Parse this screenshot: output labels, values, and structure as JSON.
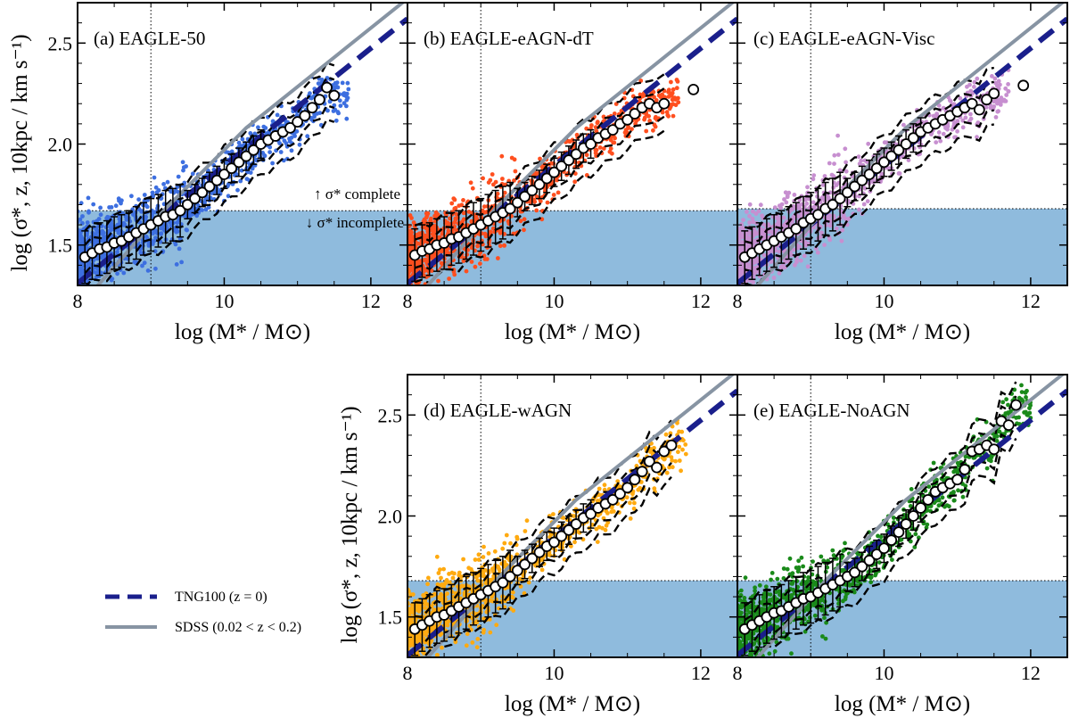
{
  "figure": {
    "legend": [
      {
        "label": "TNG100 (z = 0)",
        "color": "#1a1f8c",
        "style": "dashed"
      },
      {
        "label": "SDSS (0.02 < z < 0.2)",
        "color": "#8794a3",
        "style": "solid"
      }
    ],
    "annotation_up": "↑ σ* complete",
    "annotation_down": "↓ σ* incomplete",
    "colors": {
      "shade": "#8fbbdd",
      "tng": "#1a1f8c",
      "sdss": "#8794a3"
    }
  },
  "chart_data": [
    {
      "type": "scatter",
      "title": "(a) EAGLE-50",
      "xlabel": "log (M* / M⊙)",
      "ylabel": "log (σ*, z, 10kpc / km s⁻¹)",
      "xlim": [
        8,
        12.5
      ],
      "ylim": [
        1.3,
        2.7
      ],
      "xticks": [
        "8",
        "10",
        "12"
      ],
      "yticks": [
        "1.5",
        "2.0",
        "2.5"
      ],
      "point_color": "#3d6fe0",
      "completeness_limit": 1.67,
      "mass_limit": 9.0,
      "median_x": [
        8.1,
        8.2,
        8.3,
        8.4,
        8.5,
        8.6,
        8.7,
        8.8,
        8.9,
        9.0,
        9.1,
        9.2,
        9.3,
        9.4,
        9.5,
        9.6,
        9.7,
        9.8,
        9.9,
        10.0,
        10.1,
        10.2,
        10.3,
        10.4,
        10.5,
        10.6,
        10.7,
        10.8,
        10.9,
        11.0,
        11.1,
        11.2,
        11.3,
        11.4,
        11.5
      ],
      "median_y": [
        1.44,
        1.46,
        1.48,
        1.49,
        1.51,
        1.52,
        1.54,
        1.56,
        1.58,
        1.6,
        1.62,
        1.64,
        1.65,
        1.67,
        1.7,
        1.73,
        1.76,
        1.79,
        1.82,
        1.85,
        1.88,
        1.91,
        1.94,
        1.97,
        2.0,
        2.02,
        2.04,
        2.06,
        2.08,
        2.11,
        2.14,
        2.18,
        2.22,
        2.28,
        2.24
      ],
      "extra_points": []
    },
    {
      "type": "scatter",
      "title": "(b) EAGLE-eAGN-dT",
      "xlabel": "log (M* / M⊙)",
      "ylabel": "",
      "xlim": [
        8,
        12.5
      ],
      "ylim": [
        1.3,
        2.7
      ],
      "xticks": [
        "8",
        "10",
        "12"
      ],
      "yticks": [],
      "point_color": "#ff4f1f",
      "completeness_limit": 1.67,
      "mass_limit": 9.0,
      "median_x": [
        8.1,
        8.2,
        8.3,
        8.4,
        8.5,
        8.6,
        8.7,
        8.8,
        8.9,
        9.0,
        9.1,
        9.2,
        9.3,
        9.4,
        9.5,
        9.6,
        9.7,
        9.8,
        9.9,
        10.0,
        10.1,
        10.2,
        10.3,
        10.4,
        10.5,
        10.6,
        10.7,
        10.8,
        10.9,
        11.0,
        11.1,
        11.2,
        11.3,
        11.4,
        11.5
      ],
      "median_y": [
        1.45,
        1.47,
        1.48,
        1.5,
        1.51,
        1.53,
        1.54,
        1.56,
        1.58,
        1.6,
        1.62,
        1.64,
        1.66,
        1.68,
        1.71,
        1.74,
        1.77,
        1.8,
        1.83,
        1.86,
        1.89,
        1.92,
        1.95,
        1.98,
        2.0,
        2.03,
        2.05,
        2.07,
        2.1,
        2.12,
        2.15,
        2.18,
        2.2,
        2.18,
        2.2
      ],
      "extra_points": [
        [
          11.9,
          2.27
        ]
      ]
    },
    {
      "type": "scatter",
      "title": "(c) EAGLE-eAGN-Visc",
      "xlabel": "log (M* / M⊙)",
      "ylabel": "",
      "xlim": [
        8,
        12.5
      ],
      "ylim": [
        1.3,
        2.7
      ],
      "xticks": [
        "8",
        "10",
        "12"
      ],
      "yticks": [],
      "point_color": "#c78fd0",
      "completeness_limit": 1.68,
      "mass_limit": 9.0,
      "median_x": [
        8.1,
        8.2,
        8.3,
        8.4,
        8.5,
        8.6,
        8.7,
        8.8,
        8.9,
        9.0,
        9.1,
        9.2,
        9.3,
        9.4,
        9.5,
        9.6,
        9.7,
        9.8,
        9.9,
        10.0,
        10.1,
        10.2,
        10.3,
        10.4,
        10.5,
        10.6,
        10.7,
        10.8,
        10.9,
        11.0,
        11.1,
        11.2,
        11.3,
        11.4,
        11.5
      ],
      "median_y": [
        1.44,
        1.46,
        1.48,
        1.5,
        1.52,
        1.54,
        1.56,
        1.58,
        1.61,
        1.63,
        1.65,
        1.68,
        1.7,
        1.73,
        1.76,
        1.79,
        1.82,
        1.85,
        1.88,
        1.91,
        1.94,
        1.97,
        2.0,
        2.03,
        2.06,
        2.08,
        2.1,
        2.12,
        2.14,
        2.16,
        2.18,
        2.2,
        2.17,
        2.22,
        2.25
      ],
      "extra_points": [
        [
          11.9,
          2.29
        ]
      ]
    },
    {
      "type": "scatter",
      "title": "(d) EAGLE-wAGN",
      "xlabel": "log (M* / M⊙)",
      "ylabel": "log (σ*, z, 10kpc / km s⁻¹)",
      "xlim": [
        8,
        12.5
      ],
      "ylim": [
        1.3,
        2.7
      ],
      "xticks": [
        "8",
        "10",
        "12"
      ],
      "yticks": [
        "1.5",
        "2.0",
        "2.5"
      ],
      "point_color": "#ffaa10",
      "completeness_limit": 1.68,
      "mass_limit": 9.0,
      "median_x": [
        8.1,
        8.2,
        8.3,
        8.4,
        8.5,
        8.6,
        8.7,
        8.8,
        8.9,
        9.0,
        9.1,
        9.2,
        9.3,
        9.4,
        9.5,
        9.6,
        9.7,
        9.8,
        9.9,
        10.0,
        10.1,
        10.2,
        10.3,
        10.4,
        10.5,
        10.6,
        10.7,
        10.8,
        10.9,
        11.0,
        11.1,
        11.2,
        11.3,
        11.4,
        11.5,
        11.6
      ],
      "median_y": [
        1.44,
        1.46,
        1.48,
        1.5,
        1.51,
        1.53,
        1.55,
        1.57,
        1.59,
        1.61,
        1.63,
        1.65,
        1.67,
        1.7,
        1.73,
        1.76,
        1.79,
        1.82,
        1.85,
        1.87,
        1.9,
        1.93,
        1.96,
        1.99,
        2.01,
        2.04,
        2.06,
        2.08,
        2.11,
        2.14,
        2.18,
        2.22,
        2.27,
        2.24,
        2.32,
        2.35
      ],
      "extra_points": []
    },
    {
      "type": "scatter",
      "title": "(e) EAGLE-NoAGN",
      "xlabel": "log (M* / M⊙)",
      "ylabel": "",
      "xlim": [
        8,
        12.5
      ],
      "ylim": [
        1.3,
        2.7
      ],
      "xticks": [
        "8",
        "10",
        "12"
      ],
      "yticks": [],
      "point_color": "#1a8a1a",
      "completeness_limit": 1.68,
      "mass_limit": 9.0,
      "median_x": [
        8.1,
        8.2,
        8.3,
        8.4,
        8.5,
        8.6,
        8.7,
        8.8,
        8.9,
        9.0,
        9.1,
        9.2,
        9.3,
        9.4,
        9.5,
        9.6,
        9.7,
        9.8,
        9.9,
        10.0,
        10.1,
        10.2,
        10.3,
        10.4,
        10.5,
        10.6,
        10.7,
        10.8,
        10.9,
        11.0,
        11.1,
        11.2,
        11.3,
        11.4,
        11.5,
        11.6,
        11.7,
        11.8
      ],
      "median_y": [
        1.44,
        1.46,
        1.48,
        1.5,
        1.52,
        1.53,
        1.55,
        1.57,
        1.59,
        1.6,
        1.62,
        1.64,
        1.66,
        1.68,
        1.7,
        1.72,
        1.75,
        1.78,
        1.81,
        1.84,
        1.88,
        1.92,
        1.96,
        2.0,
        2.04,
        2.08,
        2.12,
        2.14,
        2.16,
        2.18,
        2.23,
        2.32,
        2.33,
        2.35,
        2.33,
        2.47,
        2.45,
        2.55
      ],
      "extra_points": []
    }
  ],
  "reference_lines": {
    "tng100": {
      "x": [
        8.0,
        12.5
      ],
      "y": [
        1.31,
        2.62
      ]
    },
    "sdss": {
      "x": [
        8.1,
        8.4,
        9.2,
        10.3,
        11.4,
        12.5
      ],
      "y": [
        1.23,
        1.35,
        1.68,
        2.08,
        2.4,
        2.72
      ]
    }
  }
}
